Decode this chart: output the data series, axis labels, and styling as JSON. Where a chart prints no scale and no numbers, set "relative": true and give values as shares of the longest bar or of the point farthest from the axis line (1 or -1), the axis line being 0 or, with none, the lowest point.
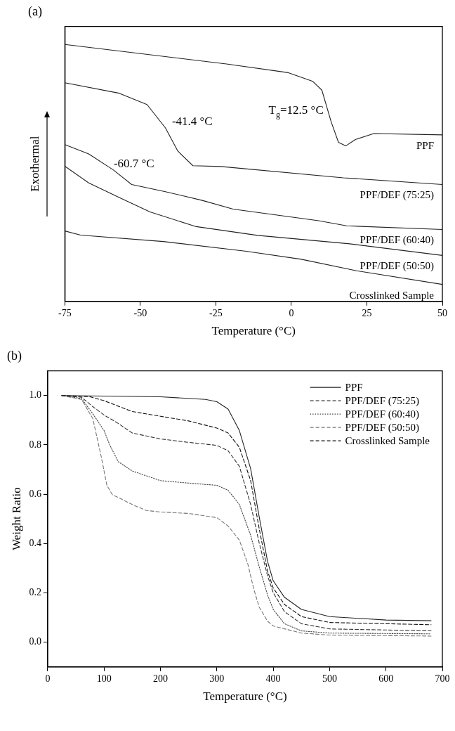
{
  "chart_data": [
    {
      "type": "line",
      "title": "(a)",
      "xlabel": "Temperature (°C)",
      "ylabel": "Exothermal",
      "relative": true,
      "legend": false,
      "xlim": [
        -75,
        50
      ],
      "xticks": [
        -75,
        -50,
        -25,
        0,
        25,
        50
      ],
      "series": [
        {
          "name": "PPF",
          "color": "#222222",
          "x": [
            -75,
            -21.5,
            -1,
            7.1,
            10.1,
            13.2,
            15.6,
            18,
            21.2,
            27.3,
            50
          ],
          "values": [
            1.0,
            0.924,
            0.89,
            0.856,
            0.822,
            0.698,
            0.619,
            0.605,
            0.63,
            0.653,
            0.648
          ]
        },
        {
          "name": "PPF/DEF (75:25)",
          "color": "#222222",
          "x": [
            -75,
            -57,
            -47.8,
            -41.7,
            -37.6,
            -32.6,
            -23.4,
            17.2,
            50
          ],
          "values": [
            0.851,
            0.81,
            0.766,
            0.675,
            0.585,
            0.528,
            0.525,
            0.481,
            0.455
          ]
        },
        {
          "name": "PPF/DEF (60:40)",
          "color": "#222222",
          "x": [
            -75,
            -67.1,
            -59,
            -52.9,
            -41.7,
            -29.5,
            -19.3,
            9,
            18.3,
            50
          ],
          "values": [
            0.61,
            0.574,
            0.512,
            0.455,
            0.427,
            0.393,
            0.359,
            0.314,
            0.294,
            0.28
          ]
        },
        {
          "name": "PPF/DEF (50:50)",
          "color": "#222222",
          "x": [
            -75,
            -67.1,
            -57,
            -46.8,
            -31.5,
            -11.2,
            19.3,
            50
          ],
          "values": [
            0.526,
            0.461,
            0.404,
            0.348,
            0.291,
            0.257,
            0.224,
            0.179
          ]
        },
        {
          "name": "Crosslinked Sample",
          "color": "#222222",
          "x": [
            -75,
            -69.8,
            -42.4,
            -14.9,
            3.3,
            21.6,
            50
          ],
          "values": [
            0.274,
            0.258,
            0.233,
            0.195,
            0.164,
            0.119,
            0.066
          ]
        }
      ],
      "annotations": [
        {
          "text": "T$_{g}$=12.5 °C",
          "x": 12.5,
          "y": 0.72
        },
        {
          "text": "-41.4 °C",
          "x": -41.4,
          "y": 0.675
        },
        {
          "text": "-60.7 °C",
          "x": -60.7,
          "y": 0.512
        }
      ]
    },
    {
      "type": "line",
      "title": "(b)",
      "xlabel": "Temperature (°C)",
      "ylabel": "Weight Ratio",
      "legend": "top right",
      "xlim": [
        0,
        700
      ],
      "xticks": [
        0,
        100,
        200,
        300,
        400,
        500,
        600,
        700
      ],
      "ylim": [
        -0.1,
        1.1
      ],
      "yticks": [
        {
          "value": 0,
          "label": "0.0"
        },
        0.2,
        0.4,
        0.6,
        0.8,
        {
          "value": 1,
          "label": "1.0"
        }
      ],
      "series": [
        {
          "name": "PPF",
          "color": "#222222",
          "line_style": "solid",
          "x": [
            25,
            200,
            280,
            300,
            320,
            340,
            360,
            375,
            390,
            400,
            420,
            450,
            500,
            600,
            680
          ],
          "values": [
            1.0,
            0.995,
            0.984,
            0.975,
            0.945,
            0.858,
            0.703,
            0.51,
            0.327,
            0.249,
            0.182,
            0.133,
            0.104,
            0.09,
            0.087
          ]
        },
        {
          "name": "PPF/DEF (75:25)",
          "color": "#333333",
          "line_style": "dashed",
          "x": [
            25,
            60,
            80,
            100,
            125,
            150,
            200,
            250,
            300,
            320,
            340,
            360,
            375,
            390,
            400,
            420,
            450,
            500,
            680
          ],
          "values": [
            1.0,
            0.993,
            0.955,
            0.921,
            0.887,
            0.848,
            0.824,
            0.81,
            0.798,
            0.776,
            0.713,
            0.558,
            0.404,
            0.269,
            0.201,
            0.124,
            0.075,
            0.054,
            0.046
          ]
        },
        {
          "name": "PPF/DEF (60:40)",
          "color": "#444444",
          "line_style": "dotted",
          "x": [
            25,
            60,
            80,
            100,
            110,
            125,
            150,
            200,
            250,
            300,
            320,
            340,
            360,
            375,
            390,
            400,
            420,
            450,
            500,
            680
          ],
          "values": [
            1.0,
            0.988,
            0.926,
            0.858,
            0.8,
            0.732,
            0.694,
            0.655,
            0.645,
            0.636,
            0.616,
            0.558,
            0.433,
            0.307,
            0.191,
            0.133,
            0.075,
            0.046,
            0.037,
            0.034
          ]
        },
        {
          "name": "PPF/DEF (50:50)",
          "color": "#777777",
          "line_style": "dashed",
          "x": [
            25,
            60,
            80,
            95,
            105,
            115,
            125,
            150,
            175,
            200,
            250,
            300,
            320,
            340,
            355,
            365,
            375,
            390,
            400,
            450,
            500,
            680
          ],
          "values": [
            1.0,
            0.984,
            0.907,
            0.752,
            0.636,
            0.597,
            0.587,
            0.558,
            0.534,
            0.528,
            0.522,
            0.505,
            0.471,
            0.414,
            0.317,
            0.22,
            0.143,
            0.085,
            0.066,
            0.037,
            0.029,
            0.025
          ]
        },
        {
          "name": "Crosslinked Sample",
          "color": "#111111",
          "line_style": "dashed",
          "x": [
            25,
            75,
            100,
            150,
            200,
            250,
            300,
            320,
            340,
            360,
            375,
            390,
            400,
            420,
            450,
            500,
            680
          ],
          "values": [
            1.0,
            0.995,
            0.979,
            0.935,
            0.916,
            0.897,
            0.868,
            0.848,
            0.79,
            0.655,
            0.462,
            0.288,
            0.22,
            0.153,
            0.104,
            0.08,
            0.071
          ]
        }
      ]
    }
  ]
}
